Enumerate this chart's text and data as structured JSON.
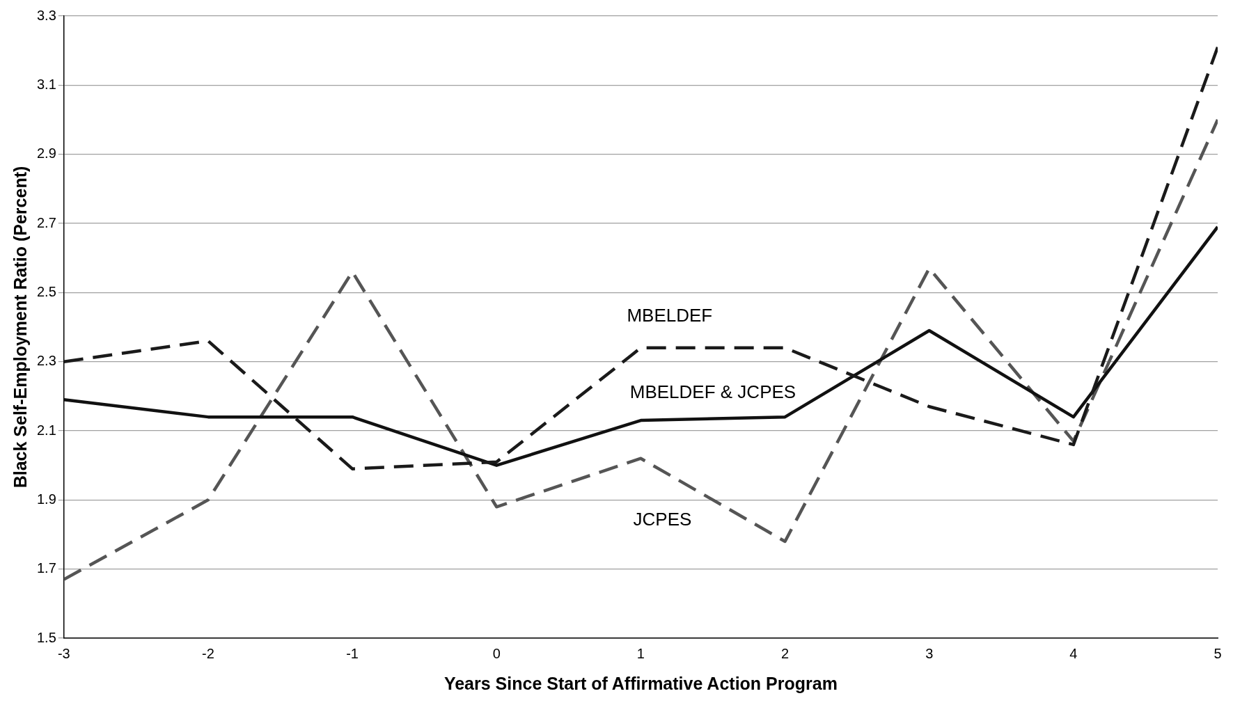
{
  "chart_data": {
    "type": "line",
    "xlabel": "Years Since Start of Affirmative Action Program",
    "ylabel": "Black Self-Employment Ratio (Percent)",
    "x": [
      -3,
      -2,
      -1,
      0,
      1,
      2,
      3,
      4,
      5
    ],
    "series": [
      {
        "name": "MBELDEF",
        "color": "#1a1a1a",
        "line_style": "dashed",
        "values": [
          2.3,
          2.36,
          1.99,
          2.01,
          2.34,
          2.34,
          2.17,
          2.06,
          3.21
        ]
      },
      {
        "name": "MBELDEF & JCPES",
        "color": "#111111",
        "line_style": "solid",
        "values": [
          2.19,
          2.14,
          2.14,
          2.0,
          2.13,
          2.14,
          2.39,
          2.14,
          2.69
        ]
      },
      {
        "name": "JCPES",
        "color": "#555555",
        "line_style": "dashed",
        "values": [
          1.67,
          1.9,
          2.56,
          1.88,
          2.02,
          1.78,
          2.57,
          2.07,
          3.0
        ]
      }
    ],
    "xlim": [
      -3,
      5
    ],
    "xticks": [
      -3,
      -2,
      -1,
      0,
      1,
      2,
      3,
      4,
      5
    ],
    "ylim": [
      1.5,
      3.3
    ],
    "yticks": [
      1.5,
      1.7,
      1.9,
      2.1,
      2.3,
      2.5,
      2.7,
      2.9,
      3.1,
      3.3
    ],
    "grid": "y",
    "legend": false,
    "marker": "none"
  }
}
